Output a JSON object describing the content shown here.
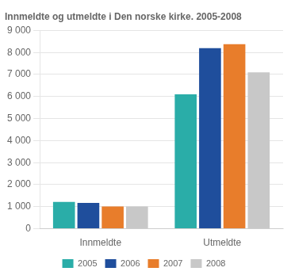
{
  "chart_data": {
    "type": "bar",
    "title": "Innmeldte og utmeldte i Den norske kirke. 2005-2008",
    "categories": [
      "Innmeldte",
      "Utmeldte"
    ],
    "series": [
      {
        "name": "2005",
        "color": "#2aada8",
        "values": [
          1220,
          6100
        ]
      },
      {
        "name": "2006",
        "color": "#1f4e9c",
        "values": [
          1170,
          8200
        ]
      },
      {
        "name": "2007",
        "color": "#e87d2b",
        "values": [
          1010,
          8380
        ]
      },
      {
        "name": "2008",
        "color": "#c8c8c8",
        "values": [
          1010,
          7100
        ]
      }
    ],
    "ylim": [
      0,
      9000
    ],
    "yticks": [
      0,
      {
        "value": 1000,
        "label": "1 000"
      },
      {
        "value": 2000,
        "label": "2 000"
      },
      {
        "value": 3000,
        "label": "3 000"
      },
      {
        "value": 4000,
        "label": "4 000"
      },
      {
        "value": 5000,
        "label": "5 000"
      },
      {
        "value": 6000,
        "label": "6 000"
      },
      {
        "value": 7000,
        "label": "7 000"
      },
      {
        "value": 8000,
        "label": "8 000"
      },
      {
        "value": 9000,
        "label": "9 000"
      }
    ],
    "grid": true,
    "legend": "bottom"
  }
}
